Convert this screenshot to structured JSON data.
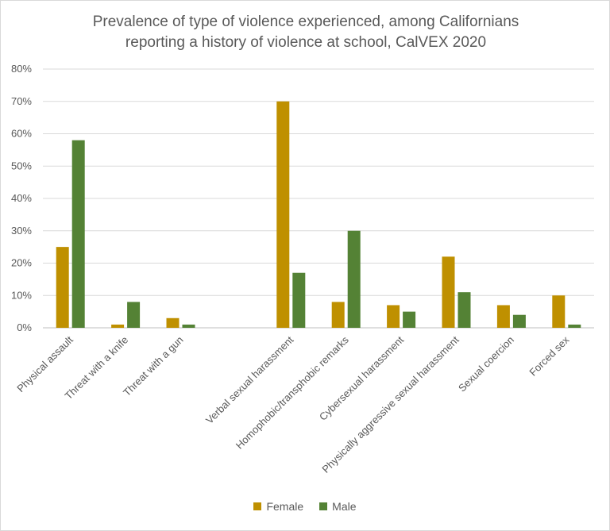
{
  "chart_data": {
    "type": "bar",
    "title_line1": "Prevalence of type of violence experienced, among Californians",
    "title_line2": "reporting a history of violence at school, CalVEX 2020",
    "categories": [
      "Physical assault",
      "Threat with a knife",
      "Threat with a gun",
      "",
      "Verbal sexual harassment",
      "Homophobic/transphobic remarks",
      "Cybersexual harassment",
      "Physically aggressive sexual harassment",
      "Sexual coercion",
      "Forced sex"
    ],
    "series": [
      {
        "name": "Female",
        "color": "#bf9000",
        "values": [
          25,
          1,
          3,
          null,
          70,
          8,
          7,
          22,
          7,
          10
        ]
      },
      {
        "name": "Male",
        "color": "#548235",
        "values": [
          58,
          8,
          1,
          null,
          17,
          30,
          5,
          11,
          4,
          1
        ]
      }
    ],
    "ylim": [
      0,
      80
    ],
    "yticks": [
      "0%",
      "10%",
      "20%",
      "30%",
      "40%",
      "50%",
      "60%",
      "70%",
      "80%"
    ],
    "grid": true,
    "legend_position": "bottom"
  }
}
